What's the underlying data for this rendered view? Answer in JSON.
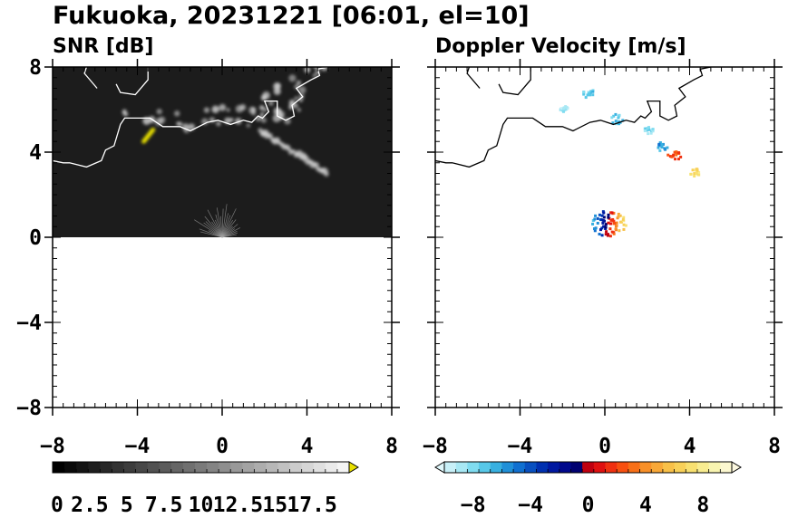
{
  "figure": {
    "title": "Fukuoka, 20231221 [06:01, el=10]"
  },
  "chart_data": [
    {
      "type": "heatmap",
      "title": "SNR [dB]",
      "xlim": [
        -8,
        8
      ],
      "ylim": [
        -8,
        8
      ],
      "x_ticks": [
        "−8",
        "−4",
        "0",
        "4",
        "8"
      ],
      "y_ticks": [
        "8",
        "4",
        "0",
        "−4",
        "−8"
      ],
      "colorbar": {
        "range": [
          0,
          20
        ],
        "tick_labels": [
          "0",
          "2.5",
          "5",
          "7.5",
          "10",
          "12.5",
          "15",
          "17.5"
        ],
        "extend": "max",
        "colors": [
          "#000000",
          "#0a0a0a",
          "#141414",
          "#1e1e1e",
          "#282828",
          "#333333",
          "#3d3d3d",
          "#474747",
          "#515151",
          "#5b5b5b",
          "#666666",
          "#707070",
          "#7a7a7a",
          "#848484",
          "#8e8e8e",
          "#999999",
          "#a3a3a3",
          "#adadad",
          "#b7b7b7",
          "#c1c1c1",
          "#cccccc",
          "#d6d6d6",
          "#e0e0e0",
          "#eaeaea",
          "#f4f4f4"
        ],
        "over_color": "#e8e000"
      },
      "background_color": "#1c1c1c",
      "coverage": "northern half (y from 0 to 8)",
      "echo_color": "#d0d0d0"
    },
    {
      "type": "heatmap",
      "title": "Doppler Velocity [m/s]",
      "xlim": [
        -8,
        8
      ],
      "ylim": [
        -8,
        8
      ],
      "x_ticks": [
        "−8",
        "−4",
        "0",
        "4",
        "8"
      ],
      "y_ticks": [],
      "colorbar": {
        "range": [
          -10,
          10
        ],
        "tick_labels": [
          "−8",
          "−4",
          "0",
          "4",
          "8"
        ],
        "extend": "both",
        "colors": [
          "#c8f0f8",
          "#a8e8f4",
          "#80dcf0",
          "#58c8e8",
          "#38b0e0",
          "#2090d8",
          "#1070d0",
          "#0850c0",
          "#0030b0",
          "#0018a0",
          "#00088c",
          "#000070",
          "#c00010",
          "#e01010",
          "#f03010",
          "#f85010",
          "#f87018",
          "#f89028",
          "#f8a838",
          "#f8c048",
          "#f8d058",
          "#f8e070",
          "#f8ec90",
          "#f8f4b0",
          "#fcf8d0"
        ],
        "under_color": "#e0f8fc",
        "over_color": "#fcf8e0"
      },
      "echoes": [
        {
          "x": 0.1,
          "y": 0.7,
          "r": 0.85,
          "palette": "mixed"
        },
        {
          "x": -0.8,
          "y": 6.8,
          "r": 0.3,
          "v": -7
        },
        {
          "x": 0.5,
          "y": 5.6,
          "r": 0.35,
          "v": -7
        },
        {
          "x": 2.0,
          "y": 5.1,
          "r": 0.25,
          "v": -8
        },
        {
          "x": 2.6,
          "y": 4.3,
          "r": 0.3,
          "v": -6
        },
        {
          "x": 3.2,
          "y": 3.9,
          "r": 0.35,
          "v": 2
        },
        {
          "x": 4.2,
          "y": 3.1,
          "r": 0.25,
          "v": 7
        },
        {
          "x": -2.0,
          "y": 6.1,
          "r": 0.2,
          "v": -9
        }
      ]
    }
  ],
  "coastline": {
    "main": [
      [
        -8,
        3.6
      ],
      [
        -7.5,
        3.5
      ],
      [
        -7.2,
        3.5
      ],
      [
        -6.4,
        3.3
      ],
      [
        -5.7,
        3.6
      ],
      [
        -5.5,
        4.1
      ],
      [
        -5.1,
        4.3
      ],
      [
        -4.8,
        5.3
      ],
      [
        -4.6,
        5.6
      ],
      [
        -3.4,
        5.6
      ],
      [
        -2.8,
        5.2
      ],
      [
        -2.0,
        5.2
      ],
      [
        -1.5,
        5.0
      ],
      [
        -0.7,
        5.4
      ],
      [
        -0.2,
        5.5
      ],
      [
        0.4,
        5.3
      ],
      [
        1.0,
        5.5
      ],
      [
        1.4,
        5.4
      ],
      [
        1.7,
        5.7
      ],
      [
        1.9,
        5.6
      ],
      [
        2.2,
        5.9
      ],
      [
        2.0,
        6.4
      ],
      [
        2.6,
        6.4
      ],
      [
        2.6,
        5.7
      ],
      [
        3.0,
        5.5
      ],
      [
        3.4,
        5.7
      ],
      [
        3.3,
        6.2
      ],
      [
        3.8,
        6.6
      ],
      [
        3.5,
        7.0
      ],
      [
        4.2,
        7.4
      ],
      [
        4.6,
        7.6
      ],
      [
        4.5,
        7.9
      ],
      [
        5.0,
        8
      ]
    ],
    "island": [
      [
        -5.9,
        7.0
      ],
      [
        -6.5,
        7.7
      ],
      [
        -6.4,
        8.0
      ]
    ],
    "bay": [
      [
        -3.5,
        8.0
      ],
      [
        -3.5,
        7.4
      ],
      [
        -4.1,
        6.7
      ],
      [
        -4.8,
        6.8
      ],
      [
        -5.0,
        7.2
      ]
    ]
  }
}
